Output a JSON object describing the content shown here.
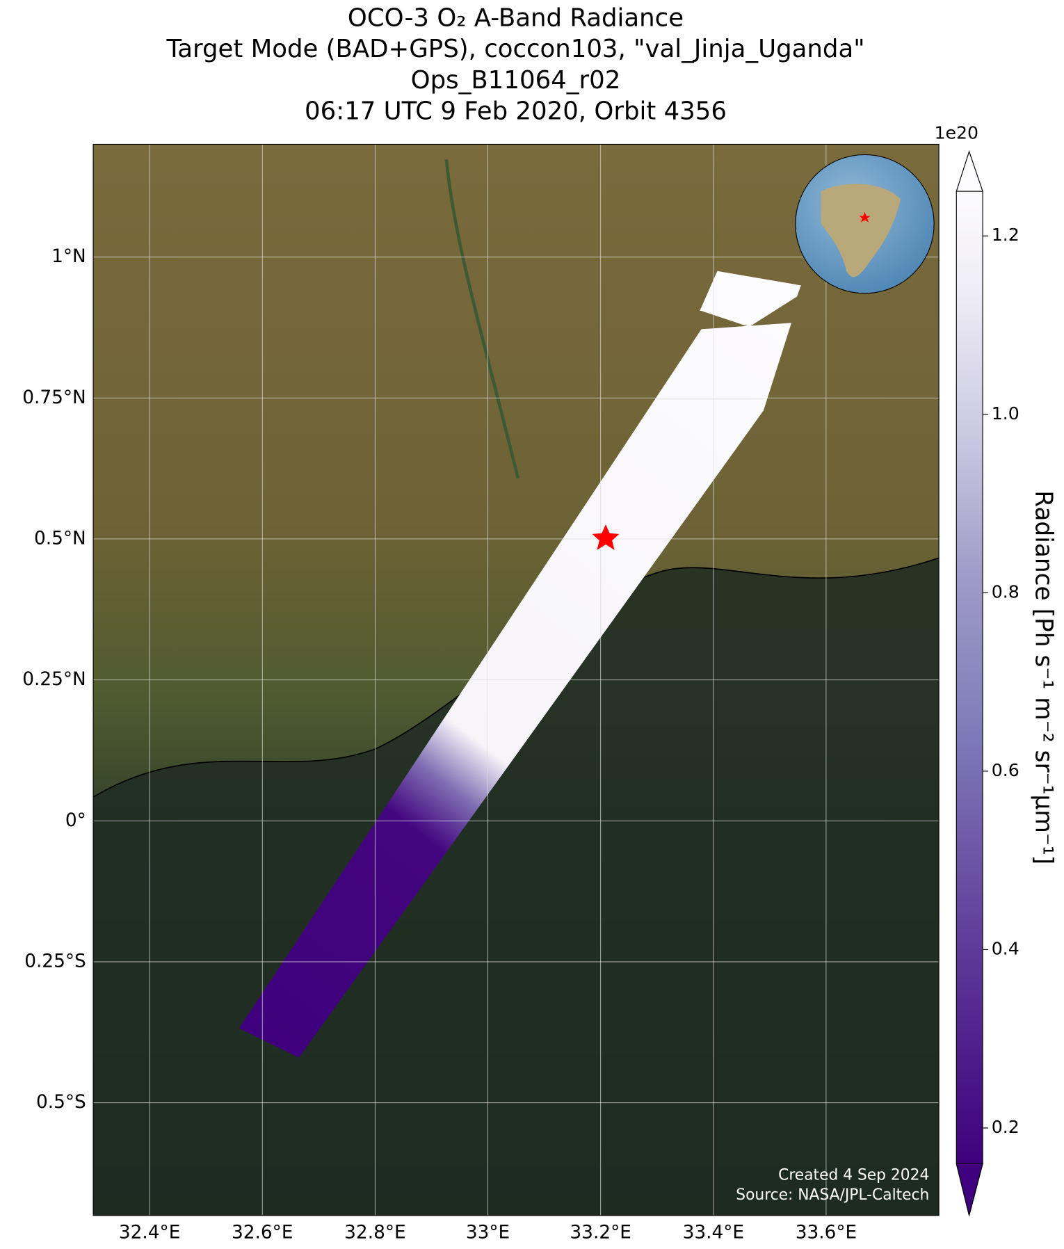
{
  "chart_data": {
    "type": "map",
    "title": [
      "OCO-3 O₂ A-Band Radiance",
      "Target Mode (BAD+GPS), coccon103, \"val_Jinja_Uganda\"",
      "Ops_B11064_r02",
      "06:17 UTC 9 Feb 2020, Orbit 4356"
    ],
    "xlim": [
      32.3,
      33.8
    ],
    "ylim": [
      -0.7,
      1.2
    ],
    "xticks": [
      {
        "value": 32.4,
        "label": "32.4°E"
      },
      {
        "value": 32.6,
        "label": "32.6°E"
      },
      {
        "value": 32.8,
        "label": "32.8°E"
      },
      {
        "value": 33,
        "label": "33°E"
      },
      {
        "value": 33.2,
        "label": "33.2°E"
      },
      {
        "value": 33.4,
        "label": "33.4°E"
      },
      {
        "value": 33.6,
        "label": "33.6°E"
      }
    ],
    "yticks": [
      {
        "value": 1,
        "label": "1°N"
      },
      {
        "value": 0.75,
        "label": "0.75°N"
      },
      {
        "value": 0.5,
        "label": "0.5°N"
      },
      {
        "value": 0.25,
        "label": "0.25°N"
      },
      {
        "value": 0,
        "label": "0°"
      },
      {
        "value": -0.25,
        "label": "0.25°S"
      },
      {
        "value": -0.5,
        "label": "0.5°S"
      }
    ],
    "grid": true,
    "colorbar": {
      "label": "Radiance [Ph s⁻¹ m⁻² sr⁻¹µm⁻¹]",
      "scale_label": "1e20",
      "lim": [
        0.16,
        1.25
      ],
      "ticks": [
        0.2,
        0.4,
        0.6,
        0.8,
        {
          "value": 1,
          "label": "1.0"
        },
        1.2
      ]
    },
    "credits": [
      "Created 4 Sep 2024",
      "Source: NASA/JPL-Caltech"
    ]
  }
}
